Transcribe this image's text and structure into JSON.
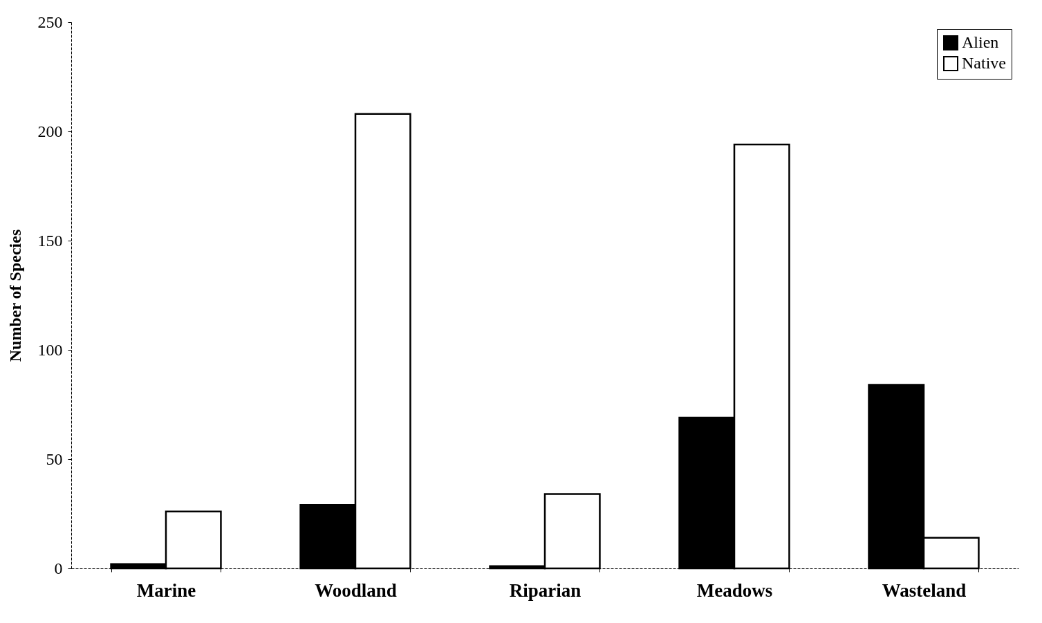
{
  "chart_data": {
    "type": "bar",
    "ylabel": "Number of Species",
    "categories": [
      "Marine",
      "Woodland",
      "Riparian",
      "Meadows",
      "Wasteland"
    ],
    "series": [
      {
        "name": "Alien",
        "color": "#000000",
        "values": [
          2,
          29,
          1,
          69,
          84
        ]
      },
      {
        "name": "Native",
        "color": "#ffffff",
        "values": [
          26,
          208,
          34,
          194,
          14
        ]
      }
    ],
    "ylim": [
      0,
      250
    ],
    "yticks": [
      0,
      50,
      100,
      150,
      200,
      250
    ],
    "legend": "top right"
  }
}
